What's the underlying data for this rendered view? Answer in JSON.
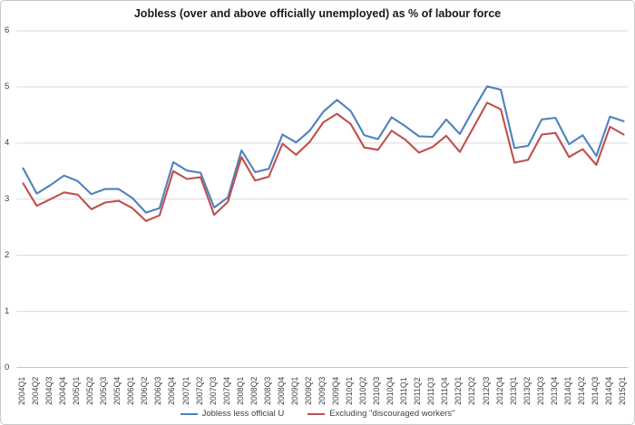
{
  "chart_data": {
    "type": "line",
    "title": "Jobless (over and above officially unemployed) as % of labour force",
    "xlabel": "",
    "ylabel": "",
    "ylim": [
      0,
      6
    ],
    "yticks": [
      0,
      1,
      2,
      3,
      4,
      5,
      6
    ],
    "grid": "horizontal",
    "legend_position": "bottom",
    "gridline_color": "#d9d9d9",
    "axis_line_color": "#c6c6c6",
    "categories": [
      "2004Q1",
      "2004Q2",
      "2004Q3",
      "2004Q4",
      "2005Q1",
      "2005Q2",
      "2005Q3",
      "2005Q4",
      "2006Q1",
      "2006Q2",
      "2006Q3",
      "2006Q4",
      "2007Q1",
      "2007Q2",
      "2007Q3",
      "2007Q4",
      "2008Q1",
      "2008Q2",
      "2008Q3",
      "2008Q4",
      "2009Q1",
      "2009Q2",
      "2009Q3",
      "2009Q4",
      "2010Q1",
      "2010Q2",
      "2010Q3",
      "2010Q4",
      "2011Q1",
      "2011Q2",
      "2011Q3",
      "2011Q4",
      "2012Q1",
      "2012Q2",
      "2012Q3",
      "2012Q4",
      "2013Q1",
      "2013Q2",
      "2013Q3",
      "2013Q4",
      "2014Q1",
      "2014Q2",
      "2014Q3",
      "2014Q4",
      "2015Q1"
    ],
    "series": [
      {
        "name": "Jobless less official U",
        "color": "#4F81BD",
        "values": [
          3.55,
          3.1,
          3.25,
          3.42,
          3.32,
          3.09,
          3.18,
          3.18,
          3.02,
          2.76,
          2.84,
          3.66,
          3.51,
          3.47,
          2.85,
          3.03,
          3.87,
          3.48,
          3.54,
          4.15,
          4.01,
          4.22,
          4.56,
          4.77,
          4.57,
          4.14,
          4.07,
          4.46,
          4.3,
          4.12,
          4.11,
          4.42,
          4.16,
          4.6,
          5.01,
          4.95,
          3.91,
          3.95,
          4.42,
          4.45,
          3.98,
          4.14,
          3.77,
          4.47,
          4.39
        ]
      },
      {
        "name": "Excluding \"discouraged workers\"",
        "color": "#C0504D",
        "values": [
          3.28,
          2.88,
          3.0,
          3.12,
          3.08,
          2.82,
          2.94,
          2.97,
          2.84,
          2.61,
          2.71,
          3.5,
          3.36,
          3.39,
          2.72,
          2.95,
          3.75,
          3.33,
          3.4,
          3.99,
          3.79,
          4.02,
          4.37,
          4.52,
          4.34,
          3.92,
          3.88,
          4.22,
          4.06,
          3.83,
          3.93,
          4.13,
          3.84,
          4.28,
          4.72,
          4.6,
          3.65,
          3.7,
          4.15,
          4.18,
          3.75,
          3.89,
          3.61,
          4.29,
          4.15
        ]
      }
    ]
  }
}
